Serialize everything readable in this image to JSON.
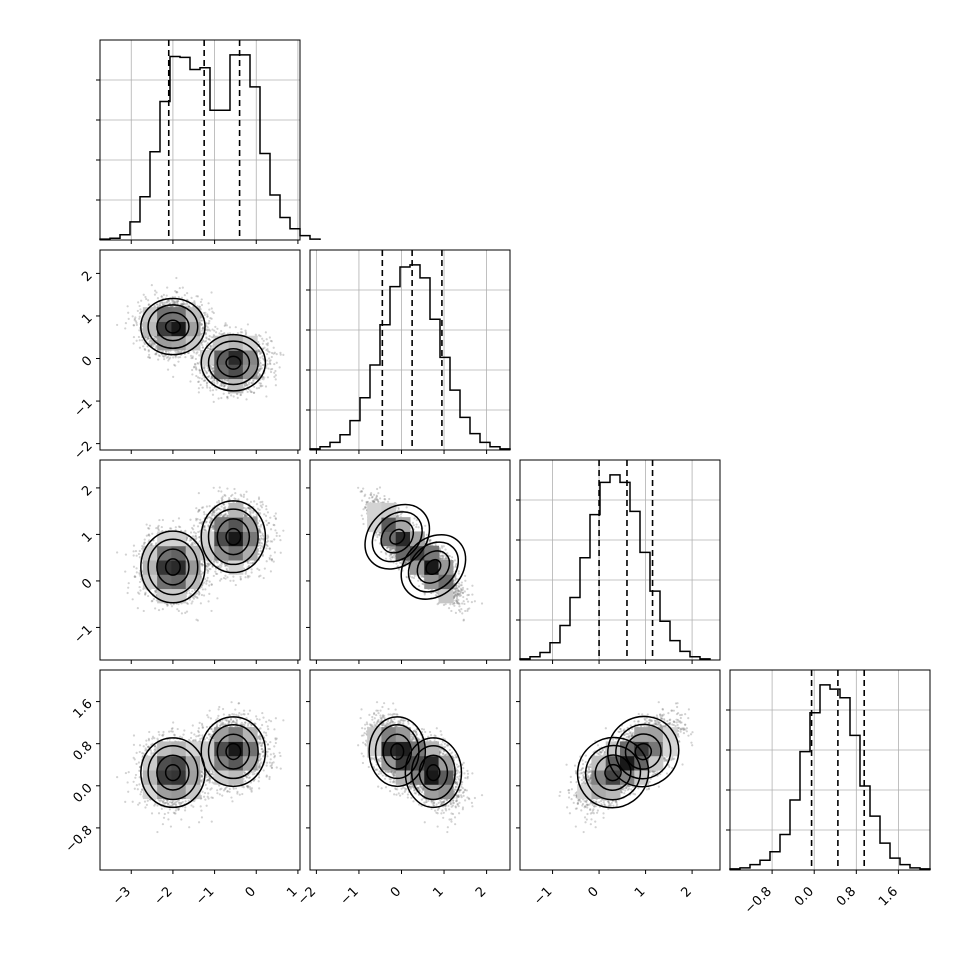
{
  "chart_data": {
    "type": "corner",
    "n_params": 4,
    "grid": true,
    "quantile_lines": "dashed",
    "colors": {
      "hist_line": "#000000",
      "scatter": "#7f7f7f",
      "contour": "#000000",
      "grid": "#b0b0b0"
    },
    "params": [
      {
        "range": [
          -3.75,
          1.05
        ],
        "ticks": [
          -3,
          -2,
          -1,
          0,
          1
        ],
        "tick_labels": [
          "−3",
          "−2",
          "−1",
          "0",
          "1"
        ],
        "quantiles": [
          -2.1,
          -1.25,
          -0.4
        ],
        "hist": {
          "edges_start": -3.75,
          "bin_width": 0.24,
          "counts": [
            1,
            2,
            6,
            21,
            50,
            102,
            160,
            212,
            211,
            197,
            199,
            150,
            150,
            214,
            214,
            177,
            100,
            52,
            26,
            13,
            5,
            1
          ]
        }
      },
      {
        "range": [
          -2.15,
          2.55
        ],
        "ticks": [
          -2,
          -1,
          0,
          1,
          2
        ],
        "tick_labels": [
          "−2",
          "−1",
          "0",
          "1",
          "2"
        ],
        "quantiles": [
          -0.45,
          0.25,
          0.95
        ],
        "hist": {
          "edges_start": -2.15,
          "bin_width": 0.235,
          "counts": [
            1,
            3,
            7,
            14,
            27,
            48,
            78,
            115,
            150,
            168,
            170,
            158,
            120,
            85,
            55,
            30,
            15,
            7,
            3,
            1
          ]
        }
      },
      {
        "range": [
          -1.7,
          2.6
        ],
        "ticks": [
          -1,
          0,
          1,
          2
        ],
        "tick_labels": [
          "−1",
          "0",
          "1",
          "2"
        ],
        "quantiles": [
          0.0,
          0.6,
          1.15
        ],
        "hist": {
          "edges_start": -1.7,
          "bin_width": 0.215,
          "counts": [
            1,
            3,
            7,
            16,
            32,
            58,
            95,
            135,
            165,
            172,
            165,
            138,
            100,
            64,
            36,
            18,
            8,
            3,
            1
          ]
        }
      },
      {
        "range": [
          -1.6,
          2.2
        ],
        "ticks": [
          -0.8,
          0.0,
          0.8,
          1.6
        ],
        "tick_labels": [
          "−0.8",
          "0.0",
          "0.8",
          "1.6"
        ],
        "quantiles": [
          -0.05,
          0.45,
          0.95
        ],
        "hist": {
          "edges_start": -1.6,
          "bin_width": 0.19,
          "counts": [
            1,
            2,
            5,
            9,
            17,
            33,
            65,
            110,
            146,
            172,
            168,
            160,
            125,
            78,
            50,
            25,
            11,
            5,
            2,
            1
          ]
        }
      }
    ],
    "mixture": {
      "modes": [
        {
          "mean": [
            -2.0,
            0.75,
            0.3,
            0.25
          ],
          "sd": [
            0.35,
            0.3,
            0.35,
            0.3
          ],
          "weight": 0.5
        },
        {
          "mean": [
            -0.55,
            -0.1,
            0.95,
            0.65
          ],
          "sd": [
            0.35,
            0.3,
            0.35,
            0.3
          ],
          "weight": 0.5
        }
      ],
      "pair_corr": {
        "2-1": -0.75,
        "3-2": 0.55
      }
    }
  }
}
